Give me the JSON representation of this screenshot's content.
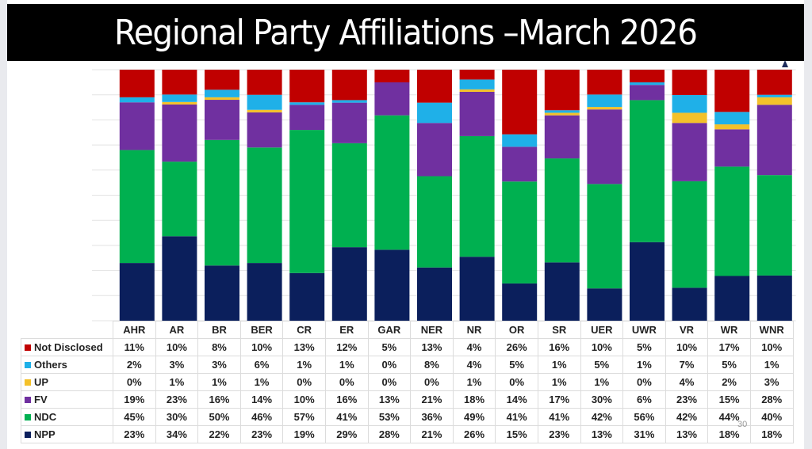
{
  "title": "Regional Party Affiliations –March 2026",
  "page_number": "30",
  "chart_data": {
    "type": "bar",
    "stacked": true,
    "title": "Regional Party Affiliations –March 2026",
    "xlabel": "",
    "ylabel": "",
    "ylim": [
      0,
      100
    ],
    "grid": true,
    "legend": "table-left",
    "categories": [
      "AHR",
      "AR",
      "BR",
      "BER",
      "CR",
      "ER",
      "GAR",
      "NER",
      "NR",
      "OR",
      "SR",
      "UER",
      "UWR",
      "VR",
      "WR",
      "WNR"
    ],
    "series": [
      {
        "name": "NPP",
        "color": "#0b1f5c",
        "values": [
          23,
          34,
          22,
          23,
          19,
          29,
          28,
          21,
          26,
          15,
          23,
          13,
          31,
          13,
          18,
          18
        ]
      },
      {
        "name": "NDC",
        "color": "#00b050",
        "values": [
          45,
          30,
          50,
          46,
          57,
          41,
          53,
          36,
          49,
          41,
          41,
          42,
          56,
          42,
          44,
          40
        ]
      },
      {
        "name": "FV",
        "color": "#7030a0",
        "values": [
          19,
          23,
          16,
          14,
          10,
          16,
          13,
          21,
          18,
          14,
          17,
          30,
          6,
          23,
          15,
          28
        ]
      },
      {
        "name": "UP",
        "color": "#f4c12a",
        "values": [
          0,
          1,
          1,
          1,
          0,
          0,
          0,
          0,
          1,
          0,
          1,
          1,
          0,
          4,
          2,
          3
        ]
      },
      {
        "name": "Others",
        "color": "#1fb0e8",
        "values": [
          2,
          3,
          3,
          6,
          1,
          1,
          0,
          8,
          4,
          5,
          1,
          5,
          1,
          7,
          5,
          1
        ]
      },
      {
        "name": "Not Disclosed",
        "color": "#c00000",
        "values": [
          11,
          10,
          8,
          10,
          13,
          12,
          5,
          13,
          4,
          26,
          16,
          10,
          5,
          10,
          17,
          10
        ]
      }
    ],
    "table": {
      "row_order": [
        "Not Disclosed",
        "Others",
        "UP",
        "FV",
        "NDC",
        "NPP"
      ],
      "rows": [
        {
          "label": "Not Disclosed",
          "color": "#c00000",
          "cells": [
            "11%",
            "10%",
            "8%",
            "10%",
            "13%",
            "12%",
            "5%",
            "13%",
            "4%",
            "26%",
            "16%",
            "10%",
            "5%",
            "10%",
            "17%",
            "10%"
          ]
        },
        {
          "label": "Others",
          "color": "#1fb0e8",
          "cells": [
            "2%",
            "3%",
            "3%",
            "6%",
            "1%",
            "1%",
            "0%",
            "8%",
            "4%",
            "5%",
            "1%",
            "5%",
            "1%",
            "7%",
            "5%",
            "1%"
          ]
        },
        {
          "label": "UP",
          "color": "#f4c12a",
          "cells": [
            "0%",
            "1%",
            "1%",
            "1%",
            "0%",
            "0%",
            "0%",
            "0%",
            "1%",
            "0%",
            "1%",
            "1%",
            "0%",
            "4%",
            "2%",
            "3%"
          ]
        },
        {
          "label": "FV",
          "color": "#7030a0",
          "cells": [
            "19%",
            "23%",
            "16%",
            "14%",
            "10%",
            "16%",
            "13%",
            "21%",
            "18%",
            "14%",
            "17%",
            "30%",
            "6%",
            "23%",
            "15%",
            "28%"
          ]
        },
        {
          "label": "NDC",
          "color": "#00b050",
          "cells": [
            "45%",
            "30%",
            "50%",
            "46%",
            "57%",
            "41%",
            "53%",
            "36%",
            "49%",
            "41%",
            "41%",
            "42%",
            "56%",
            "42%",
            "44%",
            "40%"
          ]
        },
        {
          "label": "NPP",
          "color": "#0b1f5c",
          "cells": [
            "23%",
            "34%",
            "22%",
            "23%",
            "19%",
            "29%",
            "28%",
            "21%",
            "26%",
            "15%",
            "23%",
            "13%",
            "31%",
            "13%",
            "18%",
            "18%"
          ]
        }
      ]
    }
  }
}
